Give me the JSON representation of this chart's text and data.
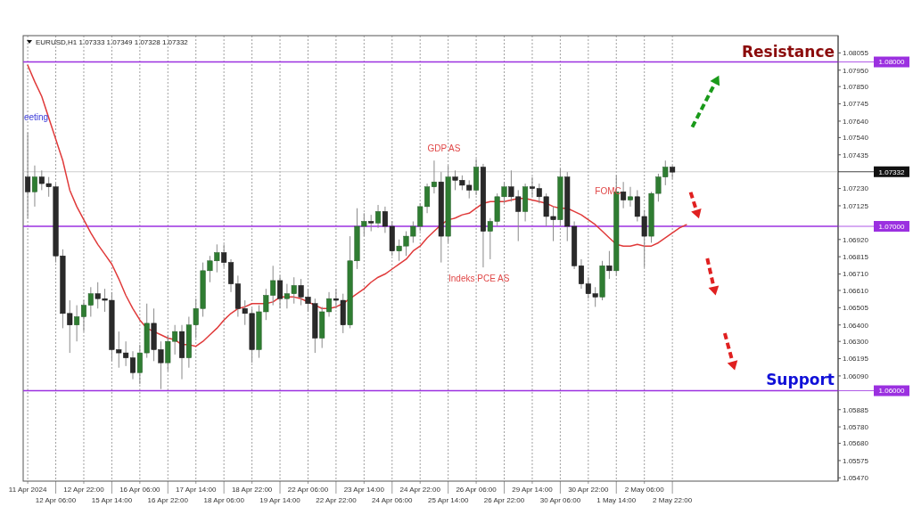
{
  "chart_data": {
    "type": "candlestick",
    "title": "EURUSD,H1  1.07333 1.07349 1.07328 1.07332",
    "categories": [
      "11 Apr 2024",
      null,
      null,
      null,
      "12 Apr 06:00",
      null,
      null,
      null,
      "12 Apr 22:00",
      null,
      null,
      null,
      "15 Apr 14:00",
      null,
      null,
      null,
      "16 Apr 06:00",
      null,
      null,
      null,
      "16 Apr 22:00",
      null,
      null,
      null,
      "17 Apr 14:00",
      null,
      null,
      null,
      "18 Apr 06:00",
      null,
      null,
      null,
      "18 Apr 22:00",
      null,
      null,
      null,
      "19 Apr 14:00",
      null,
      null,
      null,
      "22 Apr 06:00",
      null,
      null,
      null,
      "22 Apr 22:00",
      null,
      null,
      null,
      "23 Apr 14:00",
      null,
      null,
      null,
      "24 Apr 06:00",
      null,
      null,
      null,
      "24 Apr 22:00",
      null,
      null,
      null,
      "25 Apr 14:00",
      null,
      null,
      null,
      "26 Apr 06:00",
      null,
      null,
      null,
      "26 Apr 22:00",
      null,
      null,
      null,
      "29 Apr 14:00",
      null,
      null,
      null,
      "30 Apr 06:00",
      null,
      null,
      null,
      "30 Apr 22:00",
      null,
      null,
      null,
      "1 May 14:00",
      null,
      null,
      null,
      "2 May 06:00",
      null,
      null,
      null,
      "2 May 22:00",
      null,
      null,
      null,
      null,
      null,
      null,
      null,
      null,
      null,
      null,
      null,
      null,
      null,
      null,
      null,
      null,
      null,
      null,
      null,
      null,
      null,
      null,
      null
    ],
    "ohlc": [
      [
        1.073,
        1.0757,
        1.0705,
        1.0721
      ],
      [
        1.0721,
        1.0737,
        1.0712,
        1.073
      ],
      [
        1.073,
        1.0734,
        1.0722,
        1.0726
      ],
      [
        1.0726,
        1.073,
        1.0718,
        1.0724
      ],
      [
        1.0724,
        1.0726,
        1.0678,
        1.0682
      ],
      [
        1.0682,
        1.0686,
        1.0638,
        1.0647
      ],
      [
        1.0647,
        1.0655,
        1.0623,
        1.064
      ],
      [
        1.064,
        1.0652,
        1.063,
        1.0645
      ],
      [
        1.0645,
        1.0655,
        1.0636,
        1.0652
      ],
      [
        1.0652,
        1.0663,
        1.0645,
        1.0659
      ],
      [
        1.0659,
        1.0666,
        1.065,
        1.0656
      ],
      [
        1.0656,
        1.0662,
        1.0648,
        1.0655
      ],
      [
        1.0655,
        1.066,
        1.0618,
        1.0625
      ],
      [
        1.0625,
        1.0636,
        1.0614,
        1.0623
      ],
      [
        1.0623,
        1.063,
        1.0615,
        1.062
      ],
      [
        1.062,
        1.0624,
        1.0607,
        1.0611
      ],
      [
        1.0611,
        1.0628,
        1.0604,
        1.0623
      ],
      [
        1.0623,
        1.0653,
        1.062,
        1.0641
      ],
      [
        1.0641,
        1.065,
        1.0618,
        1.0625
      ],
      [
        1.0625,
        1.063,
        1.0601,
        1.0617
      ],
      [
        1.0617,
        1.0634,
        1.0612,
        1.063
      ],
      [
        1.063,
        1.064,
        1.0622,
        1.0636
      ],
      [
        1.0636,
        1.064,
        1.0607,
        1.062
      ],
      [
        1.062,
        1.0645,
        1.0614,
        1.064
      ],
      [
        1.064,
        1.0656,
        1.0632,
        1.065
      ],
      [
        1.065,
        1.0678,
        1.0645,
        1.0673
      ],
      [
        1.0673,
        1.0682,
        1.0666,
        1.0679
      ],
      [
        1.0679,
        1.0689,
        1.0672,
        1.0684
      ],
      [
        1.0684,
        1.0689,
        1.0675,
        1.0678
      ],
      [
        1.0678,
        1.068,
        1.066,
        1.0665
      ],
      [
        1.0665,
        1.067,
        1.0645,
        1.065
      ],
      [
        1.065,
        1.0655,
        1.064,
        1.0647
      ],
      [
        1.0647,
        1.065,
        1.0617,
        1.0625
      ],
      [
        1.0625,
        1.0652,
        1.062,
        1.0648
      ],
      [
        1.0648,
        1.0662,
        1.0643,
        1.0658
      ],
      [
        1.0658,
        1.0676,
        1.0652,
        1.0667
      ],
      [
        1.0667,
        1.067,
        1.065,
        1.0656
      ],
      [
        1.0656,
        1.0665,
        1.065,
        1.0659
      ],
      [
        1.0659,
        1.0669,
        1.0653,
        1.0664
      ],
      [
        1.0664,
        1.0668,
        1.0652,
        1.0657
      ],
      [
        1.0657,
        1.0662,
        1.0648,
        1.0653
      ],
      [
        1.0653,
        1.0656,
        1.0623,
        1.0632
      ],
      [
        1.0632,
        1.0651,
        1.0626,
        1.0648
      ],
      [
        1.0648,
        1.066,
        1.0645,
        1.0656
      ],
      [
        1.0656,
        1.0662,
        1.065,
        1.0655
      ],
      [
        1.0655,
        1.0659,
        1.0635,
        1.064
      ],
      [
        1.064,
        1.0694,
        1.0638,
        1.0679
      ],
      [
        1.0679,
        1.0711,
        1.0674,
        1.07
      ],
      [
        1.07,
        1.0708,
        1.0694,
        1.0703
      ],
      [
        1.0703,
        1.0707,
        1.0697,
        1.0702
      ],
      [
        1.0702,
        1.0713,
        1.0699,
        1.0709
      ],
      [
        1.0709,
        1.0712,
        1.0696,
        1.07
      ],
      [
        1.07,
        1.0703,
        1.0682,
        1.0685
      ],
      [
        1.0685,
        1.0692,
        1.0679,
        1.0688
      ],
      [
        1.0688,
        1.0697,
        1.0682,
        1.0694
      ],
      [
        1.0694,
        1.0703,
        1.069,
        1.07
      ],
      [
        1.07,
        1.0714,
        1.0697,
        1.0712
      ],
      [
        1.0712,
        1.0726,
        1.0708,
        1.0724
      ],
      [
        1.0724,
        1.074,
        1.072,
        1.0727
      ],
      [
        1.0727,
        1.0733,
        1.0678,
        1.0694
      ],
      [
        1.0694,
        1.0737,
        1.069,
        1.073
      ],
      [
        1.073,
        1.0734,
        1.0722,
        1.0728
      ],
      [
        1.0728,
        1.0731,
        1.0722,
        1.0725
      ],
      [
        1.0725,
        1.0728,
        1.0717,
        1.0722
      ],
      [
        1.0722,
        1.0741,
        1.0719,
        1.0736
      ],
      [
        1.0736,
        1.0738,
        1.0675,
        1.0697
      ],
      [
        1.0697,
        1.0705,
        1.068,
        1.0703
      ],
      [
        1.0703,
        1.072,
        1.07,
        1.0718
      ],
      [
        1.0718,
        1.0727,
        1.0714,
        1.0724
      ],
      [
        1.0724,
        1.0734,
        1.0715,
        1.0718
      ],
      [
        1.0718,
        1.0722,
        1.0691,
        1.0709
      ],
      [
        1.0709,
        1.0726,
        1.0703,
        1.0724
      ],
      [
        1.0724,
        1.073,
        1.0718,
        1.0723
      ],
      [
        1.0723,
        1.0726,
        1.0714,
        1.0718
      ],
      [
        1.0718,
        1.072,
        1.07,
        1.0706
      ],
      [
        1.0706,
        1.0712,
        1.0691,
        1.0704
      ],
      [
        1.0704,
        1.0735,
        1.07,
        1.073
      ],
      [
        1.073,
        1.0733,
        1.0691,
        1.07
      ],
      [
        1.07,
        1.0703,
        1.0674,
        1.0676
      ],
      [
        1.0676,
        1.068,
        1.0662,
        1.0665
      ],
      [
        1.0665,
        1.0669,
        1.0656,
        1.0659
      ],
      [
        1.0659,
        1.0663,
        1.0651,
        1.0657
      ],
      [
        1.0657,
        1.0679,
        1.0655,
        1.0676
      ],
      [
        1.0676,
        1.0685,
        1.0668,
        1.0673
      ],
      [
        1.0673,
        1.0731,
        1.067,
        1.0721
      ],
      [
        1.0721,
        1.0727,
        1.0711,
        1.0716
      ],
      [
        1.0716,
        1.0724,
        1.0712,
        1.0718
      ],
      [
        1.0718,
        1.0722,
        1.0703,
        1.0706
      ],
      [
        1.0706,
        1.071,
        1.0675,
        1.0694
      ],
      [
        1.0694,
        1.0721,
        1.069,
        1.072
      ],
      [
        1.072,
        1.0732,
        1.0715,
        1.073
      ],
      [
        1.073,
        1.074,
        1.0725,
        1.0736
      ],
      [
        1.0736,
        1.0737,
        1.0729,
        1.0733
      ],
      null,
      null,
      null,
      null,
      null,
      null,
      null,
      null,
      null,
      null,
      null,
      null,
      null,
      null,
      null,
      null,
      null,
      null,
      null,
      null,
      null,
      null,
      null
    ],
    "series": [
      {
        "type": "line",
        "color": "#e03a3a",
        "values": [
          1.0798,
          1.0788,
          1.0779,
          1.0766,
          1.0753,
          1.074,
          1.0722,
          1.0712,
          1.0704,
          1.0696,
          1.0689,
          1.0683,
          1.0677,
          1.0668,
          1.0658,
          1.065,
          1.0643,
          1.0638,
          1.0636,
          1.0634,
          1.0632,
          1.0631,
          1.0628,
          1.0628,
          1.0627,
          1.063,
          1.0634,
          1.0638,
          1.0643,
          1.0647,
          1.065,
          1.0651,
          1.0653,
          1.0653,
          1.0653,
          1.0654,
          1.0657,
          1.0657,
          1.0657,
          1.0656,
          1.0654,
          1.0652,
          1.065,
          1.065,
          1.0651,
          1.0653,
          1.0656,
          1.0659,
          1.0662,
          1.0666,
          1.0669,
          1.0671,
          1.0674,
          1.0677,
          1.068,
          1.0685,
          1.0688,
          1.0693,
          1.0697,
          1.0701,
          1.0704,
          1.0705,
          1.0707,
          1.0708,
          1.0711,
          1.0714,
          1.0715,
          1.0715,
          1.0715,
          1.0716,
          1.0717,
          1.0717,
          1.0716,
          1.0715,
          1.0714,
          1.0712,
          1.0711,
          1.0711,
          1.0709,
          1.0707,
          1.0704,
          1.0701,
          1.0697,
          1.0693,
          1.0689,
          1.0688,
          1.0688,
          1.0689,
          1.0688,
          1.0688,
          1.069,
          1.0693,
          1.0696,
          1.0699,
          1.0701,
          null,
          null,
          null,
          null,
          null,
          null,
          null,
          null,
          null,
          null,
          null,
          null,
          null,
          null,
          null,
          null,
          null,
          null,
          null,
          null,
          null
        ]
      }
    ],
    "ylim": [
      1.0545,
      1.0816
    ],
    "yticks": [
      1.08055,
      {
        "value": 1.0795,
        "label": "1.07950"
      },
      {
        "value": 1.0785,
        "label": "1.07850"
      },
      1.07745,
      {
        "value": 1.0764,
        "label": "1.07640"
      },
      {
        "value": 1.0754,
        "label": "1.07540"
      },
      1.07435,
      {
        "value": 1.0723,
        "label": "1.07230"
      },
      1.07125,
      {
        "value": 1.0692,
        "label": "1.06920"
      },
      1.06815,
      {
        "value": 1.0671,
        "label": "1.06710"
      },
      {
        "value": 1.0661,
        "label": "1.06610"
      },
      1.06505,
      {
        "value": 1.064,
        "label": "1.06400"
      },
      {
        "value": 1.063,
        "label": "1.06300"
      },
      1.06195,
      {
        "value": 1.0609,
        "label": "1.06090"
      },
      1.05885,
      {
        "value": 1.0578,
        "label": "1.05780"
      },
      {
        "value": 1.0568,
        "label": "1.05680"
      },
      1.05575,
      {
        "value": 1.0547,
        "label": "1.05470"
      }
    ],
    "grid": "x",
    "ref_lines": [
      {
        "axis": "y",
        "value": 1.08,
        "label": "1.08000",
        "color": "#9b30e0"
      },
      {
        "axis": "y",
        "value": 1.07,
        "label": "1.07000",
        "color": "#9b30e0"
      },
      {
        "axis": "y",
        "value": 1.06,
        "label": "1.06000",
        "color": "#9b30e0"
      },
      {
        "axis": "y",
        "value": 1.07332,
        "label": "1.07332",
        "color": "#c0c0c0"
      }
    ],
    "annotations": [
      "eeting",
      "GDP AS",
      "Indeks PCE AS",
      "FOMC",
      "Resistance",
      "Support"
    ]
  }
}
